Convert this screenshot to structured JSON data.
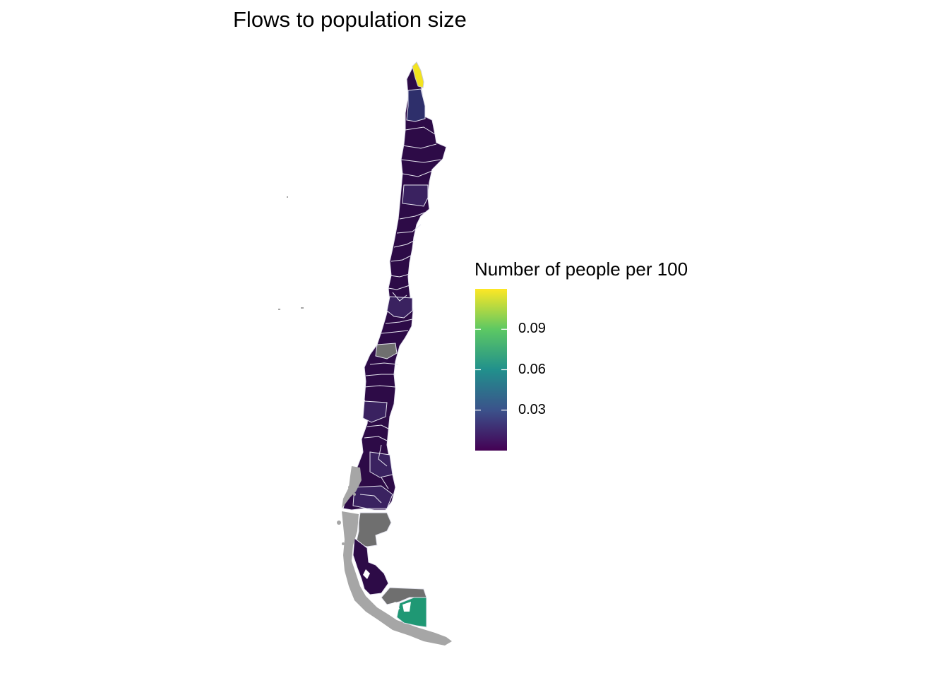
{
  "title": "Flows to population size",
  "legend": {
    "title": "Number of people per 100",
    "breaks": [
      "0.09",
      "0.06",
      "0.03"
    ],
    "break_values": [
      0.09,
      0.06,
      0.03
    ],
    "min": 0.0,
    "max": 0.12,
    "palette": [
      "#440154",
      "#3B528B",
      "#21908C",
      "#5DC863",
      "#FDE725"
    ]
  },
  "colors": {
    "low": "#2d0b47",
    "low2": "#331a55",
    "mid_low": "#2e2f6b",
    "mid": "#1f9874",
    "high": "#f3e31e",
    "na": "#6f6f6f",
    "border": "#e6e6f0",
    "islands": "#a6a6a6"
  }
}
